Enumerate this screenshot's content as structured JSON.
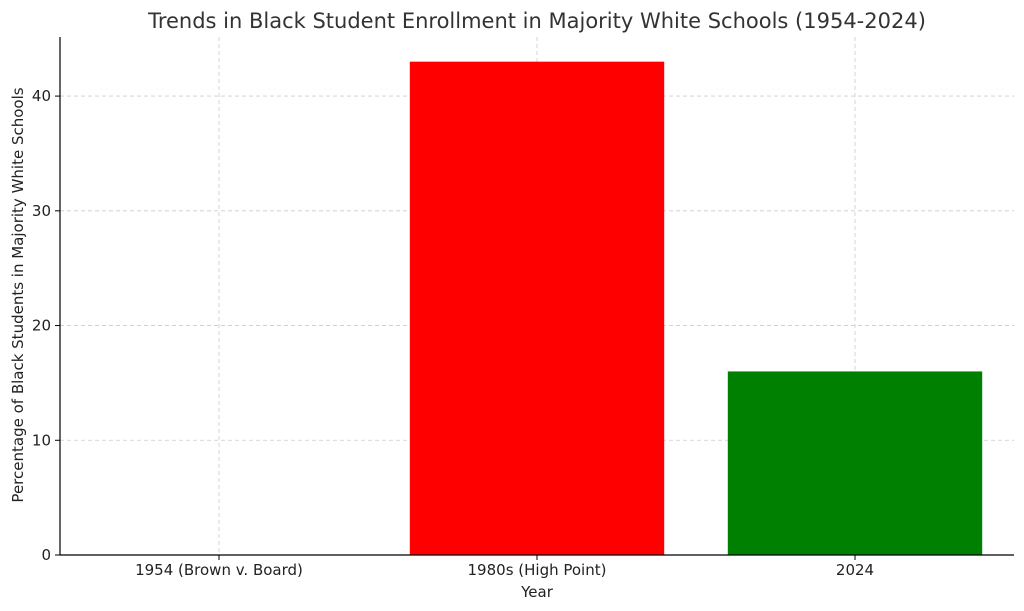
{
  "chart_data": {
    "type": "bar",
    "title": "Trends in Black Student Enrollment in Majority White Schools (1954-2024)",
    "xlabel": "Year",
    "ylabel": "Percentage of Black Students in Majority White Schools",
    "categories": [
      "1954 (Brown v. Board)",
      "1980s (High Point)",
      "2024"
    ],
    "values": [
      0,
      43,
      16
    ],
    "colors": [
      "#1f77b4",
      "#ff0000",
      "#008000"
    ],
    "ylim": [
      0,
      45.15
    ],
    "yticks": [
      0,
      10,
      20,
      30,
      40
    ],
    "grid": true
  }
}
